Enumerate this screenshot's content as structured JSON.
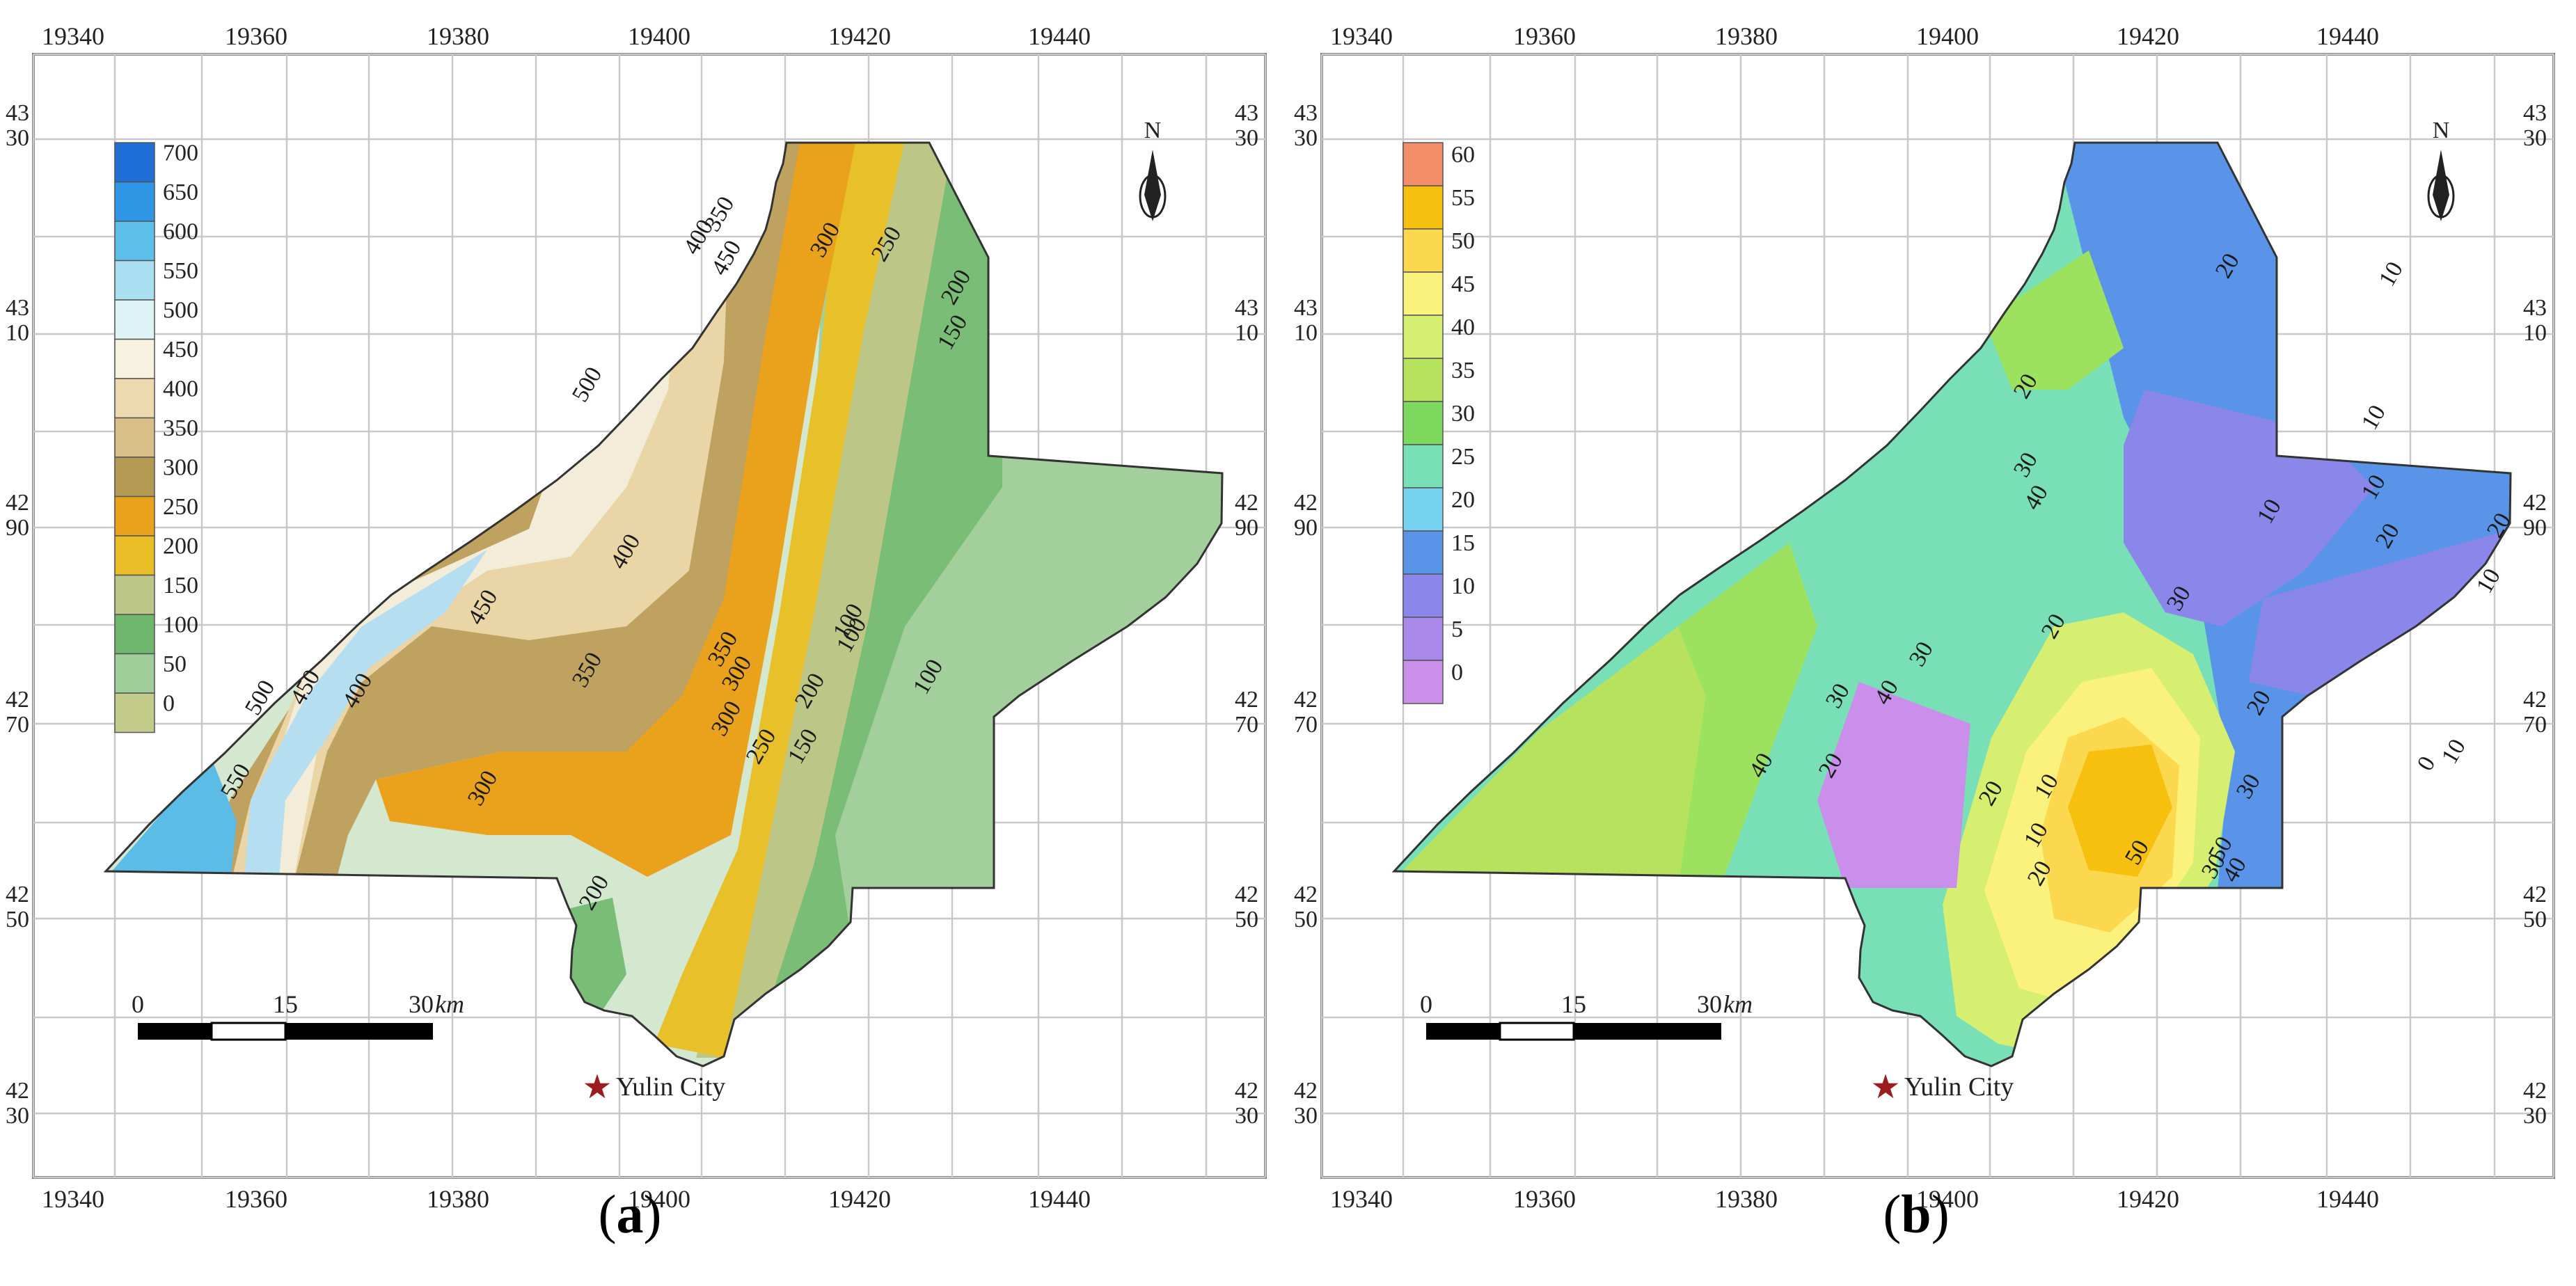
{
  "panels": [
    {
      "id": "a",
      "caption_letter": "a",
      "legend_values": [
        "700",
        "650",
        "600",
        "550",
        "500",
        "450",
        "400",
        "350",
        "300",
        "250",
        "200",
        "150",
        "100",
        "50",
        "0"
      ],
      "legend_colors": [
        "#1f6fd6",
        "#2f96e6",
        "#5cc0ea",
        "#a8e0f2",
        "#def3f6",
        "#f6f2df",
        "#ecd9b0",
        "#d8bf87",
        "#b49a52",
        "#eaa21c",
        "#e9bd26",
        "#bcc787",
        "#6fb66d",
        "#9fce9a",
        "#c2cb89"
      ],
      "contour_labels": [
        "450",
        "400",
        "350",
        "300",
        "250",
        "200",
        "150",
        "500",
        "400",
        "450",
        "100",
        "100",
        "350",
        "300",
        "200",
        "150",
        "500",
        "450",
        "400",
        "350",
        "300",
        "250",
        "550",
        "300",
        "200",
        "100"
      ],
      "map_colors": [
        "#d4e8d0",
        "#c6e2ee",
        "#f2ecd8",
        "#ead5a6",
        "#d2b979",
        "#bfa25f",
        "#eaa21c",
        "#e7c02a",
        "#bcc787",
        "#a3cf9c",
        "#79bd76",
        "#b5dff0",
        "#5bbde6"
      ]
    },
    {
      "id": "b",
      "caption_letter": "b",
      "legend_values": [
        "60",
        "55",
        "50",
        "45",
        "40",
        "35",
        "30",
        "25",
        "20",
        "15",
        "10",
        "5",
        "0"
      ],
      "legend_colors": [
        "#f48e6a",
        "#f7c00f",
        "#fbd84d",
        "#fbf27e",
        "#d6ef70",
        "#b6e25d",
        "#7dd95e",
        "#79dfb6",
        "#76d2ef",
        "#5a94e8",
        "#8a86ea",
        "#aa88ea",
        "#c98fea"
      ],
      "contour_labels": [
        "20",
        "10",
        "10",
        "20",
        "30",
        "40",
        "10",
        "10",
        "20",
        "20",
        "30",
        "20",
        "10",
        "30",
        "40",
        "30",
        "20",
        "40",
        "20",
        "10",
        "10",
        "50",
        "30",
        "10",
        "20",
        "30",
        "40",
        "50",
        "0",
        "20"
      ],
      "map_colors": [
        "#79dfb6",
        "#5a94e8",
        "#8a86ea",
        "#c98fea",
        "#76d2ef",
        "#9ce25f",
        "#d6ef70",
        "#fbf27e",
        "#fbd84d",
        "#f7c00f",
        "#b6e25d"
      ]
    }
  ],
  "shared": {
    "x_ticks": [
      "19340",
      "19360",
      "19380",
      "19400",
      "19420",
      "19440"
    ],
    "y_ticks": [
      [
        "43",
        "30"
      ],
      [
        "43",
        "10"
      ],
      [
        "42",
        "90"
      ],
      [
        "42",
        "70"
      ],
      [
        "42",
        "50"
      ],
      [
        "42",
        "30"
      ]
    ],
    "north_label": "N",
    "scale_labels": [
      "0",
      "15",
      "30"
    ],
    "scale_unit": "km",
    "city_label": "Yulin City",
    "city_color": "#9b1c1c",
    "star_glyph": "★"
  }
}
